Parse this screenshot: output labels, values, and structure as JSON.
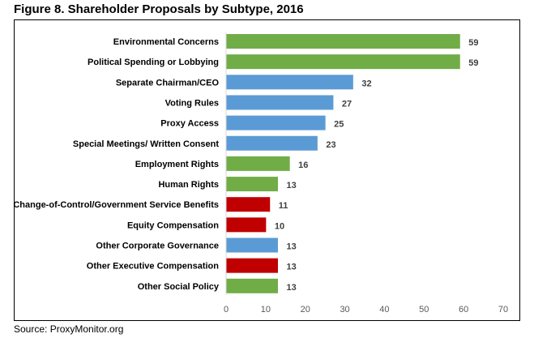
{
  "chart_data": {
    "type": "bar",
    "orientation": "horizontal",
    "title": "Figure 8. Shareholder Proposals by Subtype, 2016",
    "source": "Source: ProxyMonitor.org",
    "categories": [
      "Environmental Concerns",
      "Political Spending or Lobbying",
      "Separate Chairman/CEO",
      "Voting Rules",
      "Proxy Access",
      "Special Meetings/ Written Consent",
      "Employment Rights",
      "Human Rights",
      "Change-of-Control/Government Service Benefits",
      "Equity Compensation",
      "Other Corporate Governance",
      "Other Executive Compensation",
      "Other Social Policy"
    ],
    "values": [
      59,
      59,
      32,
      27,
      25,
      23,
      16,
      13,
      11,
      10,
      13,
      13,
      13
    ],
    "groups": [
      "social",
      "social",
      "governance",
      "governance",
      "governance",
      "governance",
      "social",
      "social",
      "compensation",
      "compensation",
      "governance",
      "compensation",
      "social"
    ],
    "colors": {
      "social": "#70ad47",
      "governance": "#5b9bd5",
      "compensation": "#c00000"
    },
    "xlim": [
      0,
      70
    ],
    "xticks": [
      "0",
      "10",
      "20",
      "30",
      "40",
      "50",
      "60",
      "70"
    ],
    "xlabel": "",
    "ylabel": "",
    "grid": false,
    "legend": "none"
  }
}
